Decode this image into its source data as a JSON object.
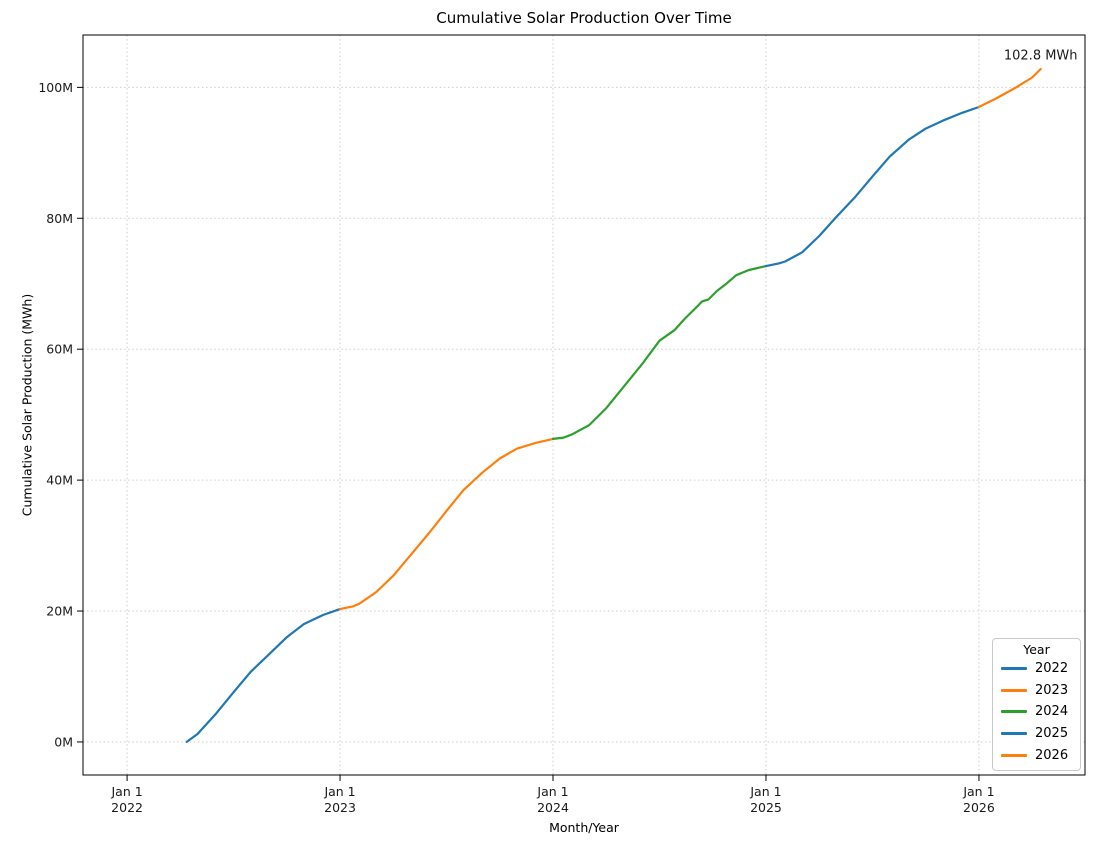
{
  "chart_data": {
    "type": "line",
    "title": "Cumulative Solar Production Over Time",
    "xlabel": "Month/Year",
    "ylabel": "Cumulative Solar Production (MWh)",
    "grid": "dotted",
    "xlim": [
      2021.793,
      2026.498
    ],
    "ylim": [
      -5.05,
      108.0
    ],
    "x_ticks": [
      {
        "line1": "Jan 1",
        "line2": "2022",
        "value": 2022
      },
      {
        "line1": "Jan 1",
        "line2": "2023",
        "value": 2023
      },
      {
        "line1": "Jan 1",
        "line2": "2024",
        "value": 2024
      },
      {
        "line1": "Jan 1",
        "line2": "2025",
        "value": 2025
      },
      {
        "line1": "Jan 1",
        "line2": "2026",
        "value": 2026
      }
    ],
    "y_ticks": [
      {
        "label": "0M",
        "value": 0
      },
      {
        "label": "20M",
        "value": 20
      },
      {
        "label": "40M",
        "value": 40
      },
      {
        "label": "60M",
        "value": 60
      },
      {
        "label": "80M",
        "value": 80
      },
      {
        "label": "100M",
        "value": 100
      }
    ],
    "annotation": {
      "text": "102.8 MWh",
      "x": 2026.29,
      "y": 104.8
    },
    "legend": {
      "title": "Year",
      "position": "lower right",
      "entries": [
        {
          "label": "2022",
          "color": "#1f77b4"
        },
        {
          "label": "2023",
          "color": "#ff7f0e"
        },
        {
          "label": "2024",
          "color": "#2ca02c"
        },
        {
          "label": "2025",
          "color": "#1f77b4"
        },
        {
          "label": "2026",
          "color": "#ff7f0e"
        }
      ]
    },
    "series": [
      {
        "name": "2022",
        "color": "#1f77b4",
        "points": [
          [
            2022.28,
            0.0
          ],
          [
            2022.33,
            1.2
          ],
          [
            2022.42,
            4.4
          ],
          [
            2022.5,
            7.6
          ],
          [
            2022.58,
            10.7
          ],
          [
            2022.67,
            13.5
          ],
          [
            2022.75,
            16.0
          ],
          [
            2022.83,
            18.0
          ],
          [
            2022.92,
            19.4
          ],
          [
            2023.0,
            20.3
          ]
        ]
      },
      {
        "name": "2023",
        "color": "#ff7f0e",
        "points": [
          [
            2023.0,
            20.3
          ],
          [
            2023.06,
            20.7
          ],
          [
            2023.09,
            21.1
          ],
          [
            2023.17,
            22.9
          ],
          [
            2023.25,
            25.4
          ],
          [
            2023.33,
            28.5
          ],
          [
            2023.42,
            32.0
          ],
          [
            2023.5,
            35.3
          ],
          [
            2023.58,
            38.5
          ],
          [
            2023.67,
            41.2
          ],
          [
            2023.75,
            43.3
          ],
          [
            2023.83,
            44.8
          ],
          [
            2023.92,
            45.7
          ],
          [
            2024.0,
            46.3
          ]
        ]
      },
      {
        "name": "2024",
        "color": "#2ca02c",
        "points": [
          [
            2024.0,
            46.3
          ],
          [
            2024.05,
            46.5
          ],
          [
            2024.09,
            47.0
          ],
          [
            2024.17,
            48.4
          ],
          [
            2024.25,
            51.0
          ],
          [
            2024.33,
            54.2
          ],
          [
            2024.42,
            57.8
          ],
          [
            2024.5,
            61.3
          ],
          [
            2024.57,
            62.9
          ],
          [
            2024.62,
            64.7
          ],
          [
            2024.67,
            66.3
          ],
          [
            2024.7,
            67.3
          ],
          [
            2024.73,
            67.6
          ],
          [
            2024.77,
            68.9
          ],
          [
            2024.81,
            69.9
          ],
          [
            2024.86,
            71.3
          ],
          [
            2024.92,
            72.1
          ],
          [
            2025.0,
            72.7
          ]
        ]
      },
      {
        "name": "2025",
        "color": "#1f77b4",
        "points": [
          [
            2025.0,
            72.7
          ],
          [
            2025.06,
            73.1
          ],
          [
            2025.09,
            73.4
          ],
          [
            2025.17,
            74.8
          ],
          [
            2025.25,
            77.3
          ],
          [
            2025.33,
            80.2
          ],
          [
            2025.42,
            83.3
          ],
          [
            2025.5,
            86.4
          ],
          [
            2025.58,
            89.4
          ],
          [
            2025.67,
            92.0
          ],
          [
            2025.75,
            93.7
          ],
          [
            2025.83,
            94.9
          ],
          [
            2025.92,
            96.1
          ],
          [
            2026.0,
            97.0
          ]
        ]
      },
      {
        "name": "2026",
        "color": "#ff7f0e",
        "points": [
          [
            2026.0,
            97.0
          ],
          [
            2026.08,
            98.3
          ],
          [
            2026.17,
            99.9
          ],
          [
            2026.25,
            101.5
          ],
          [
            2026.29,
            102.8
          ]
        ]
      }
    ]
  }
}
